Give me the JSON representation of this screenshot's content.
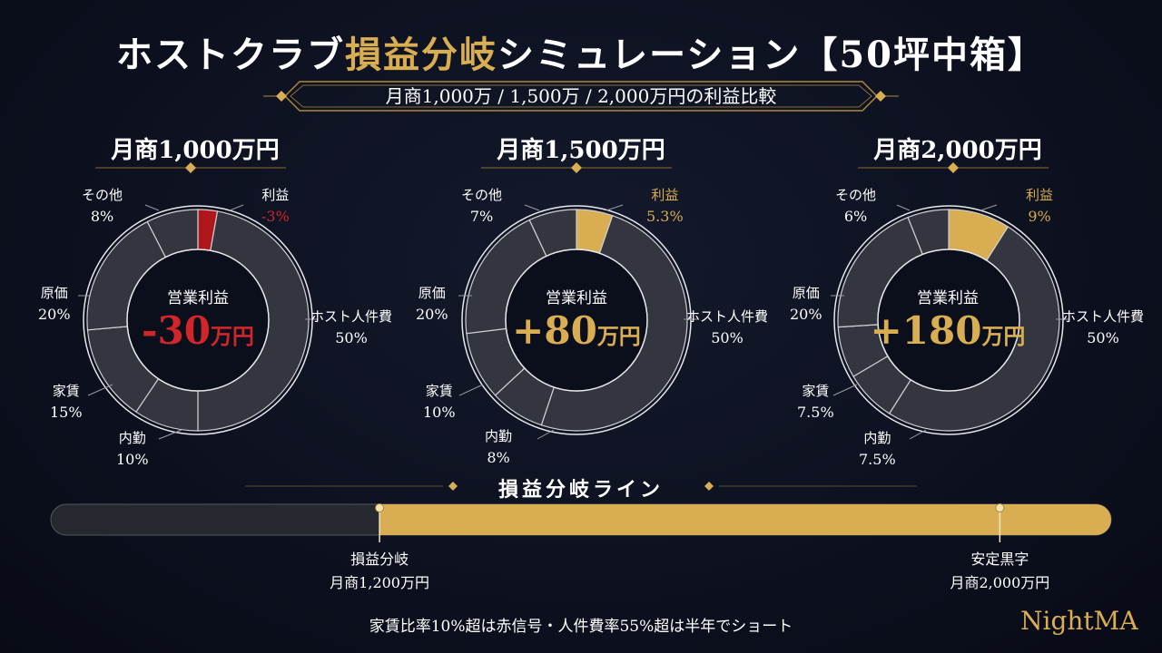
{
  "header": {
    "title_part1": "ホストクラブ",
    "title_part2": "損益分岐",
    "title_part3": "シミュレーション【50坪中箱】",
    "subtitle": "月商1,000万 / 1,500万 / 2,000万円の利益比較"
  },
  "colors": {
    "gold": "#d9ad52",
    "red": "#b0171c",
    "segment": "#33363e",
    "background": "#0d1120"
  },
  "chart_data": [
    {
      "type": "pie",
      "title": "月商1,000万円",
      "center_caption": "営業利益",
      "center_value": "-30",
      "center_unit": "万円",
      "profit_color": "red",
      "slices": [
        {
          "label": "利益",
          "pct_text": "-3%",
          "value": 3
        },
        {
          "label": "ホスト人件費",
          "pct_text": "50%",
          "value": 50
        },
        {
          "label": "内勤",
          "pct_text": "10%",
          "value": 10
        },
        {
          "label": "家賃",
          "pct_text": "15%",
          "value": 15
        },
        {
          "label": "原価",
          "pct_text": "20%",
          "value": 20
        },
        {
          "label": "その他",
          "pct_text": "8%",
          "value": 8
        }
      ]
    },
    {
      "type": "pie",
      "title": "月商1,500万円",
      "center_caption": "営業利益",
      "center_value": "+80",
      "center_unit": "万円",
      "profit_color": "gold",
      "slices": [
        {
          "label": "利益",
          "pct_text": "5.3%",
          "value": 5.3
        },
        {
          "label": "ホスト人件費",
          "pct_text": "50%",
          "value": 50
        },
        {
          "label": "内勤",
          "pct_text": "8%",
          "value": 8
        },
        {
          "label": "家賃",
          "pct_text": "10%",
          "value": 10
        },
        {
          "label": "原価",
          "pct_text": "20%",
          "value": 20
        },
        {
          "label": "その他",
          "pct_text": "7%",
          "value": 7
        }
      ]
    },
    {
      "type": "pie",
      "title": "月商2,000万円",
      "center_caption": "営業利益",
      "center_value": "+180",
      "center_unit": "万円",
      "profit_color": "gold",
      "slices": [
        {
          "label": "利益",
          "pct_text": "9%",
          "value": 9
        },
        {
          "label": "ホスト人件費",
          "pct_text": "50%",
          "value": 50
        },
        {
          "label": "内勤",
          "pct_text": "7.5%",
          "value": 7.5
        },
        {
          "label": "家賃",
          "pct_text": "7.5%",
          "value": 7.5
        },
        {
          "label": "原価",
          "pct_text": "20%",
          "value": 20
        },
        {
          "label": "その他",
          "pct_text": "6%",
          "value": 6
        }
      ]
    }
  ],
  "breakeven": {
    "title": "損益分岐ライン",
    "breakeven_fraction": 0.31,
    "stable_fraction": 0.895,
    "breakeven_label": "損益分岐",
    "breakeven_value": "月商1,200万円",
    "stable_label": "安定黒字",
    "stable_value": "月商2,000万円"
  },
  "footer": {
    "note": "家賃比率10%超は赤信号・人件費率55%超は半年でショート",
    "brand": "NightMA"
  }
}
